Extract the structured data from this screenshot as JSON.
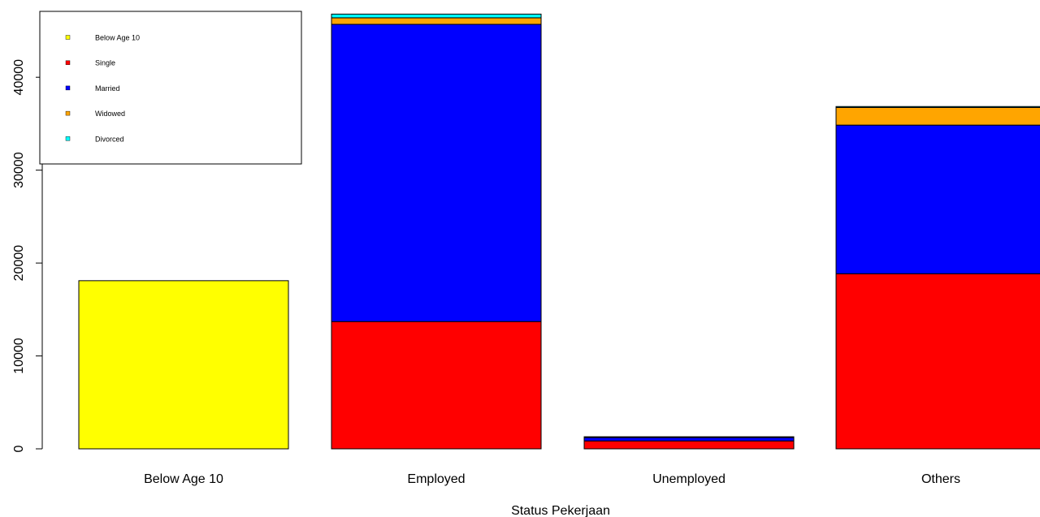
{
  "chart_data": {
    "type": "bar",
    "stacked": true,
    "title": "",
    "xlabel": "Status Pekerjaan",
    "ylabel": "",
    "ylim": [
      0,
      47000
    ],
    "yticks": [
      0,
      10000,
      20000,
      30000,
      40000
    ],
    "yticklabels": [
      "0",
      "10000",
      "20000",
      "30000",
      "40000"
    ],
    "categories": [
      "Below Age 10",
      "Employed",
      "Unemployed",
      "Others"
    ],
    "series": [
      {
        "name": "Below Age 10",
        "color": "#ffff00",
        "values": [
          18100,
          0,
          0,
          0
        ]
      },
      {
        "name": "Single",
        "color": "#ff0000",
        "values": [
          0,
          13700,
          850,
          18850
        ]
      },
      {
        "name": "Married",
        "color": "#0000ff",
        "values": [
          0,
          32000,
          400,
          16000
        ]
      },
      {
        "name": "Widowed",
        "color": "#ffa500",
        "values": [
          0,
          700,
          0,
          1900
        ]
      },
      {
        "name": "Divorced",
        "color": "#00ffff",
        "values": [
          0,
          400,
          50,
          100
        ]
      }
    ],
    "legend": {
      "position": "top-left",
      "entries": [
        "Below Age 10",
        "Single",
        "Married",
        "Widowed",
        "Divorced"
      ]
    },
    "grid": false
  }
}
